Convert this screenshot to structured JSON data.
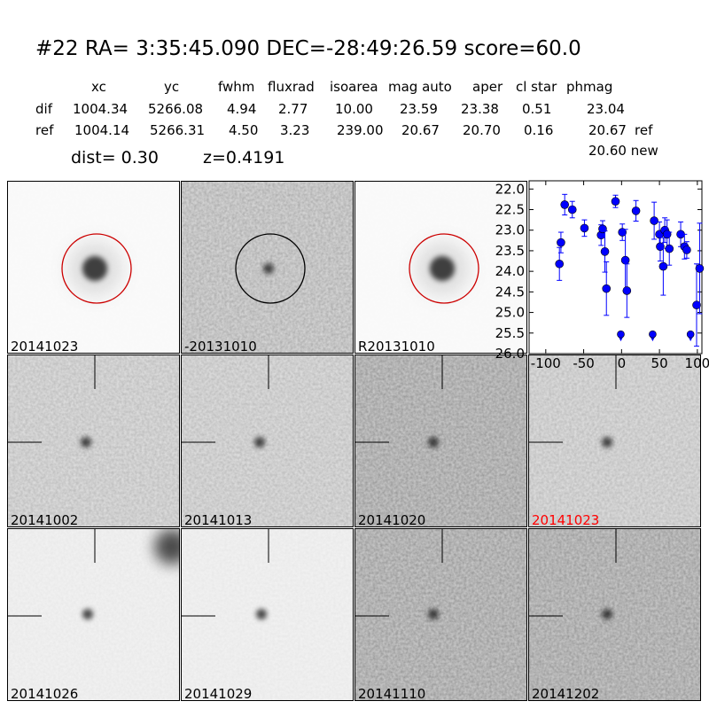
{
  "title": "#22   RA= 3:35:45.090 DEC=-28:49:26.59      score=60.0",
  "columns": [
    "xc",
    "yc",
    "fwhm",
    "fluxrad",
    "isoarea",
    "mag auto",
    "aper",
    "cl star",
    "phmag"
  ],
  "rows": [
    {
      "name": "dif",
      "values": [
        "1004.34",
        "5266.08",
        "4.94",
        "2.77",
        "10.00",
        "23.59",
        "23.38",
        "0.51",
        "23.04"
      ],
      "suffix": ""
    },
    {
      "name": "ref",
      "values": [
        "1004.14",
        "5266.31",
        "4.50",
        "3.23",
        "239.00",
        "20.67",
        "20.70",
        "0.16",
        "20.67"
      ],
      "suffix": "ref"
    }
  ],
  "new_mag": "20.60 new",
  "dist": "dist=  0.30",
  "z": "z=0.4191",
  "stamps": [
    {
      "label": "20141023",
      "tone": "smooth",
      "circle": "#cc0000",
      "cross": false
    },
    {
      "label": "-20131010",
      "tone": "noisy",
      "circle": "#000000",
      "cross": false
    },
    {
      "label": "R20131010",
      "tone": "smooth",
      "circle": "#cc0000",
      "cross": false
    },
    {
      "label": "20141002",
      "tone": "mid",
      "cross": true
    },
    {
      "label": "20141013",
      "tone": "mid",
      "cross": true
    },
    {
      "label": "20141020",
      "tone": "dark",
      "cross": true
    },
    {
      "label": "20141023",
      "tone": "mid",
      "cross": true,
      "label_color": "#ff0000"
    },
    {
      "label": "20141026",
      "tone": "light",
      "cross": true
    },
    {
      "label": "20141029",
      "tone": "light",
      "cross": true
    },
    {
      "label": "20141110",
      "tone": "dark",
      "cross": true
    },
    {
      "label": "20141202",
      "tone": "dark",
      "cross": true
    }
  ],
  "chart_data": {
    "type": "scatter",
    "xlim": [
      -122,
      106
    ],
    "ylim": [
      26.0,
      21.8
    ],
    "y_inverted": true,
    "xticks": [
      "-100",
      "-50",
      "0",
      "50",
      "100"
    ],
    "xtick_values": [
      -100,
      -50,
      0,
      50,
      100
    ],
    "yticks": [
      "22.0",
      "22.5",
      "23.0",
      "23.5",
      "24.0",
      "24.5",
      "25.0",
      "25.5",
      "26.0"
    ],
    "ytick_values": [
      22,
      22.5,
      23,
      23.5,
      24,
      24.5,
      25,
      25.5,
      26
    ],
    "color": "#0000ff",
    "points": [
      [
        -82,
        23.82,
        0.4
      ],
      [
        -80,
        23.3,
        0.25
      ],
      [
        -75,
        22.38,
        0.25
      ],
      [
        -65,
        22.5,
        0.2
      ],
      [
        -49,
        22.95,
        0.2
      ],
      [
        -27,
        23.12,
        0.25
      ],
      [
        -25,
        22.97,
        0.2
      ],
      [
        -22,
        23.52,
        0.5
      ],
      [
        -20,
        24.42,
        0.65
      ],
      [
        -8,
        22.3,
        0.15
      ],
      [
        1,
        23.05,
        0.2
      ],
      [
        5,
        23.73,
        0.75
      ],
      [
        7,
        24.47,
        0.65
      ],
      [
        19,
        22.53,
        0.25
      ],
      [
        43,
        22.77,
        0.45
      ],
      [
        50,
        23.1,
        0.3
      ],
      [
        51,
        23.4,
        0.35
      ],
      [
        55,
        23.88,
        0.7
      ],
      [
        57,
        23.0,
        0.3
      ],
      [
        60,
        23.1,
        0.35
      ],
      [
        63,
        23.45,
        0.4
      ],
      [
        78,
        23.1,
        0.3
      ],
      [
        83,
        23.4,
        0.3
      ],
      [
        86,
        23.48,
        0.2
      ],
      [
        99,
        24.82,
        1.0
      ],
      [
        103,
        23.93,
        1.1
      ]
    ],
    "upper_limits": [
      [
        -1,
        25.53
      ],
      [
        41,
        25.53
      ],
      [
        91,
        25.53
      ]
    ]
  }
}
